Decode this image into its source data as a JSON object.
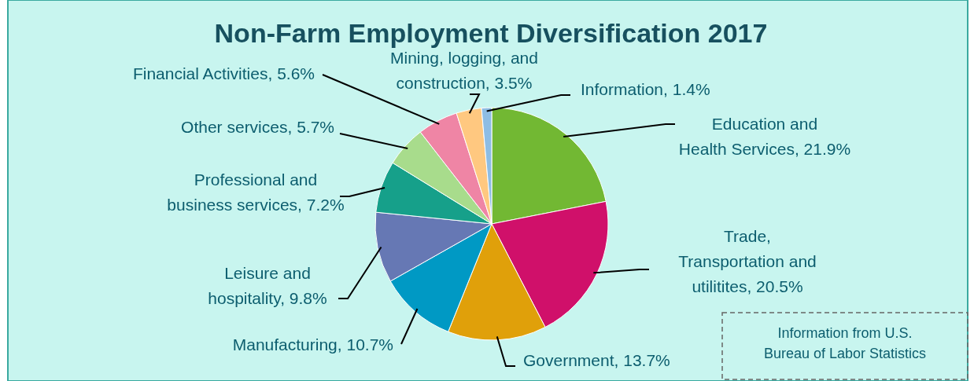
{
  "chart_data": {
    "type": "pie",
    "title": "Non-Farm Employment Diversification 2017",
    "categories": [
      "Education and Health Services",
      "Trade, Transportation and utilitites",
      "Government",
      "Manufacturing",
      "Leisure and hospitality",
      "Professional and business services",
      "Other services",
      "Financial Activities",
      "Mining, logging, and construction",
      "Information"
    ],
    "values": [
      21.9,
      20.5,
      13.7,
      10.7,
      9.8,
      7.2,
      5.7,
      5.6,
      3.5,
      1.4
    ],
    "value_labels": [
      "21.9%",
      "20.5%",
      "13.7%",
      "10.7%",
      "9.8%",
      "7.2%",
      "5.7%",
      "5.6%",
      "3.5%",
      "1.4%"
    ],
    "colors": [
      "#72b833",
      "#d0106a",
      "#e0a00a",
      "#0099c4",
      "#6678b4",
      "#16a08a",
      "#a8dc8c",
      "#ef85a5",
      "#ffc880",
      "#8ebde4"
    ],
    "annotations": [
      "Information from U.S. Bureau of Labor Statistics"
    ],
    "legend": false
  }
}
